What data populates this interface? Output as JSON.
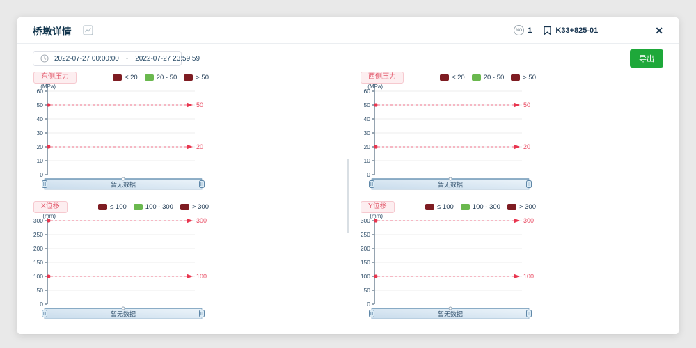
{
  "modal": {
    "title": "桥墩详情",
    "badge": {
      "icon_label": "NO",
      "value": "1"
    },
    "bookmark_label": "K33+825-01",
    "close_glyph": "✕",
    "toolbar": {
      "date_start": "2022-07-27 00:00:00",
      "date_separator": "-",
      "date_end": "2022-07-27 23:59:59",
      "export_label": "导出"
    }
  },
  "colors": {
    "threshold_red": "#e8475f",
    "legend_maroon": "#7e1c22",
    "legend_green": "#6ab84e",
    "tag_background": "#fdeef0",
    "tag_text": "#e2596b",
    "export_green": "#1ea83a",
    "navy_text": "#17344f",
    "slider_fill_light": "#ecf4fa",
    "slider_fill_dark": "#c9dcec"
  },
  "chart_data": [
    {
      "type": "line",
      "title": "东侧压力",
      "unit": "(MPa)",
      "ylabel": "(MPa)",
      "ylim": [
        0,
        60
      ],
      "yticks": [
        0,
        10,
        20,
        30,
        40,
        50,
        60
      ],
      "thresholds": [
        {
          "value": 50,
          "label": "50"
        },
        {
          "value": 20,
          "label": "20"
        }
      ],
      "legend": [
        {
          "label": "≤ 20",
          "color": "#7e1c22"
        },
        {
          "label": "20 - 50",
          "color": "#6ab84e"
        },
        {
          "label": "> 50",
          "color": "#7e1c22"
        }
      ],
      "series": [],
      "grid": true,
      "legend_position": "top-right",
      "no_data_label": "暂无数据"
    },
    {
      "type": "line",
      "title": "西侧压力",
      "unit": "(MPa)",
      "ylabel": "(MPa)",
      "ylim": [
        0,
        60
      ],
      "yticks": [
        0,
        10,
        20,
        30,
        40,
        50,
        60
      ],
      "thresholds": [
        {
          "value": 50,
          "label": "50"
        },
        {
          "value": 20,
          "label": "20"
        }
      ],
      "legend": [
        {
          "label": "≤ 20",
          "color": "#7e1c22"
        },
        {
          "label": "20 - 50",
          "color": "#6ab84e"
        },
        {
          "label": "> 50",
          "color": "#7e1c22"
        }
      ],
      "series": [],
      "grid": true,
      "legend_position": "top-right",
      "no_data_label": "暂无数据"
    },
    {
      "type": "line",
      "title": "X位移",
      "unit": "(mm)",
      "ylabel": "(mm)",
      "ylim": [
        0,
        300
      ],
      "yticks": [
        0,
        50,
        100,
        150,
        200,
        250,
        300
      ],
      "thresholds": [
        {
          "value": 300,
          "label": "300"
        },
        {
          "value": 100,
          "label": "100"
        }
      ],
      "legend": [
        {
          "label": "≤ 100",
          "color": "#7e1c22"
        },
        {
          "label": "100 - 300",
          "color": "#6ab84e"
        },
        {
          "label": "> 300",
          "color": "#7e1c22"
        }
      ],
      "series": [],
      "grid": true,
      "legend_position": "top-right",
      "no_data_label": "暂无数据"
    },
    {
      "type": "line",
      "title": "Y位移",
      "unit": "(mm)",
      "ylabel": "(mm)",
      "ylim": [
        0,
        300
      ],
      "yticks": [
        0,
        50,
        100,
        150,
        200,
        250,
        300
      ],
      "thresholds": [
        {
          "value": 300,
          "label": "300"
        },
        {
          "value": 100,
          "label": "100"
        }
      ],
      "legend": [
        {
          "label": "≤ 100",
          "color": "#7e1c22"
        },
        {
          "label": "100 - 300",
          "color": "#6ab84e"
        },
        {
          "label": "> 300",
          "color": "#7e1c22"
        }
      ],
      "series": [],
      "grid": true,
      "legend_position": "top-right",
      "no_data_label": "暂无数据"
    }
  ]
}
